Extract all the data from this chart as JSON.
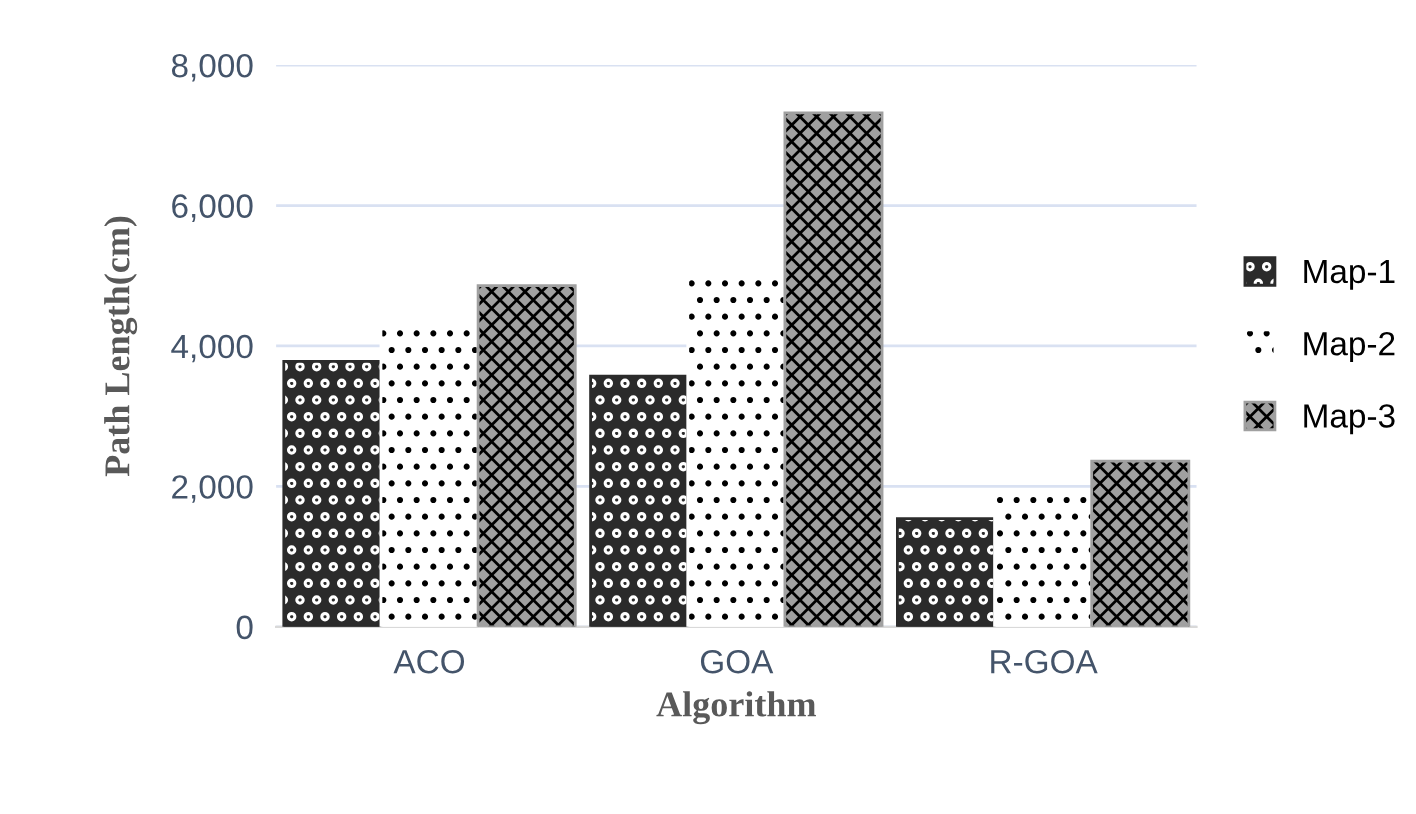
{
  "chart_data": {
    "type": "bar",
    "xlabel": "Algorithm",
    "ylabel": "Path Length(cm)",
    "categories": [
      "ACO",
      "GOA",
      "R-GOA"
    ],
    "series": [
      {
        "name": "Map-1",
        "color": "#2b2b2b",
        "values": [
          3780,
          3570,
          1540
        ]
      },
      {
        "name": "Map-2",
        "color": "#ffffff",
        "values": [
          4280,
          5010,
          1920
        ]
      },
      {
        "name": "Map-3",
        "color": "#a0a0a0",
        "values": [
          4860,
          7320,
          2360
        ]
      }
    ],
    "ylim": [
      0,
      8000
    ],
    "yticks": [
      {
        "value": 0,
        "label": "0"
      },
      {
        "value": 2000,
        "label": "2,000"
      },
      {
        "value": 4000,
        "label": "4,000"
      },
      {
        "value": 6000,
        "label": "6,000"
      },
      {
        "value": 8000,
        "label": "8,000"
      }
    ],
    "grid": "y",
    "legend": "right"
  }
}
